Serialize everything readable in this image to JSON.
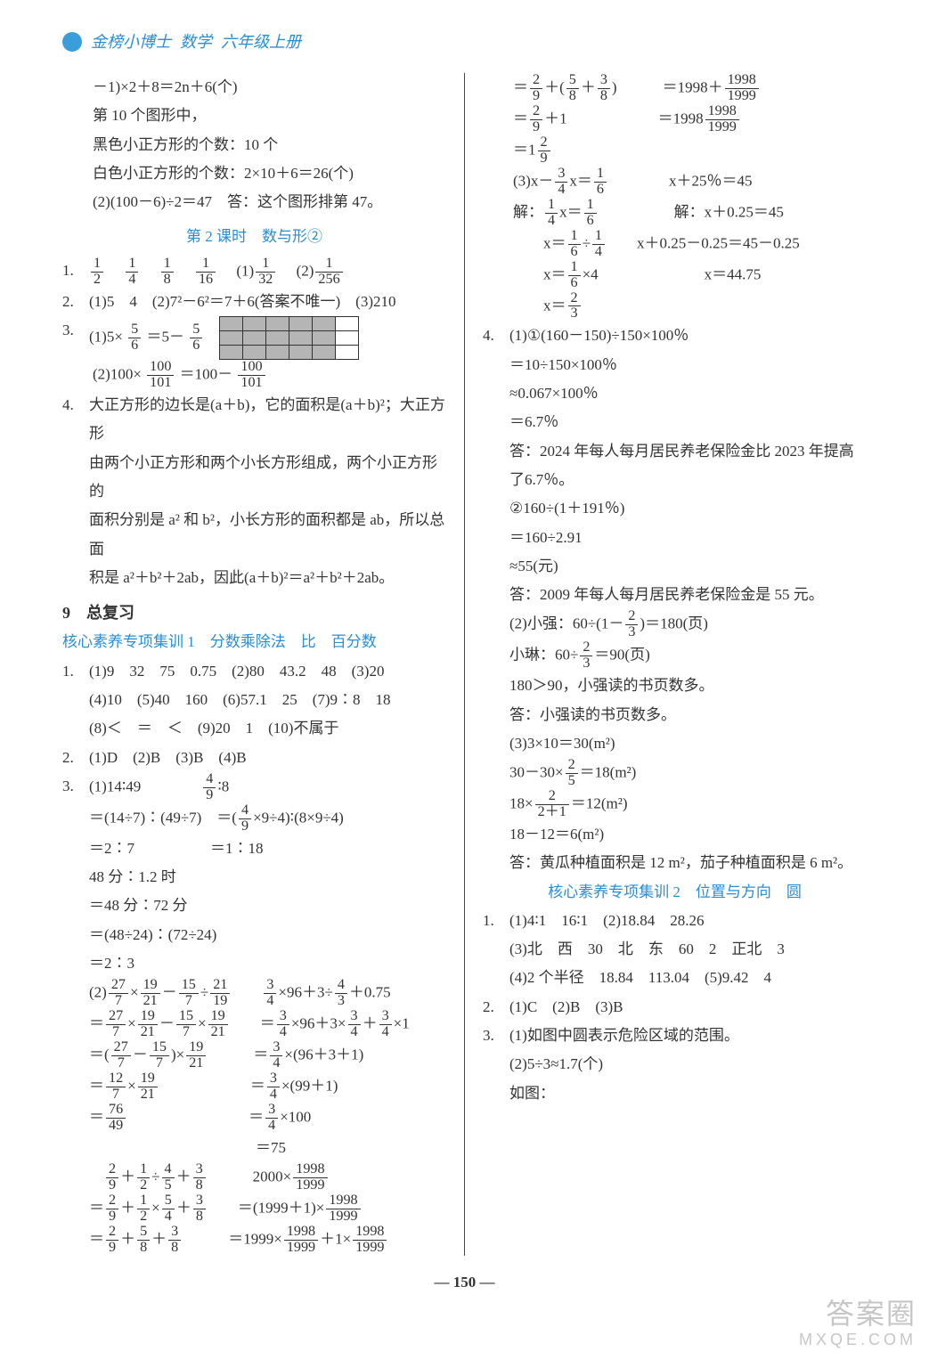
{
  "header": {
    "brand": "金榜小博士",
    "subject": "数学",
    "grade": "六年级上册"
  },
  "colors": {
    "accent": "#2a8ed5",
    "text": "#333333",
    "background": "#ffffff",
    "border": "#444444",
    "grid_shade": "#b5b5b5"
  },
  "left": {
    "l1": "－1)×2＋8＝2n＋6(个)",
    "l2": "第 10 个图形中，",
    "l3": "黑色小正方形的个数：10 个",
    "l4": "白色小正方形的个数：2×10＋6＝26(个)",
    "l5": "(2)(100－6)÷2＝47　答：这个图形排第 47。",
    "sec2_title": "第 2 课时　数与形②",
    "q1": {
      "a": "1/2",
      "b": "1/4",
      "c": "1/8",
      "d": "1/16",
      "e": "(1) 1/32",
      "f": "(2) 1/256"
    },
    "q2": "(1)5　4　(2)7²－6²＝7＋6(答案不唯一)　(3)210",
    "q3a_pre": "(1)5× ",
    "q3a_mid": " ＝5－ ",
    "grid": {
      "rows": 3,
      "cols": 6,
      "shaded_cols": 5
    },
    "q3b_pre": "(2)100× ",
    "q3b_f1n": "100",
    "q3b_f1d": "101",
    "q3b_mid": " ＝100－ ",
    "q4a": "大正方形的边长是(a＋b)，它的面积是(a＋b)²；大正方形",
    "q4b": "由两个小正方形和两个小长方形组成，两个小正方形的",
    "q4c": "面积分别是 a² 和 b²，小长方形的面积都是 ab，所以总面",
    "q4d": "积是 a²＋b²＋2ab，因此(a＋b)²＝a²＋b²＋2ab。",
    "nine": "9　总复习",
    "train1": "核心素养专项集训 1　分数乘除法　比　百分数",
    "r1a": "(1)9　32　75　0.75　(2)80　43.2　48　(3)20",
    "r1b": "(4)10　(5)40　160　(6)57.1　25　(7)9∶8　18",
    "r1c": "(8)＜　＝　＜　(9)20　1　(10)不属于",
    "r2": "(1)D　(2)B　(3)B　(4)B",
    "r3_1a": "(1)14∶49",
    "r3_1b": "4/9∶8",
    "r3_2a": "＝(14÷7)∶(49÷7)",
    "r3_2b": "＝(4/9×9÷4)∶(8×9÷4)",
    "r3_3a": "＝2∶7",
    "r3_3b": "＝1∶18",
    "r3_4": "48 分∶1.2 时",
    "r3_5": "＝48 分∶72 分",
    "r3_6": "＝(48÷24)∶(72÷24)",
    "r3_7": "＝2∶3",
    "r3_8a": "(2) 27/7 × 19/21 － 15/7 ÷ 21/19",
    "r3_8b": "3/4 ×96＋3÷ 4/3 ＋0.75",
    "r3_9a": "＝ 27/7 × 19/21 － 15/7 × 19/21",
    "r3_9b": "＝ 3/4 ×96＋3× 3/4 ＋ 3/4 ×1",
    "r3_10a": "＝( 27/7 － 15/7 )× 19/21",
    "r3_10b": "＝ 3/4 ×(96＋3＋1)",
    "r3_11a": "＝ 12/7 × 19/21",
    "r3_11b": "＝ 3/4 ×(99＋1)",
    "r3_12a": "＝ 76/49",
    "r3_12b": "＝ 3/4 ×100",
    "r3_13b": "＝75",
    "r3_14a": "2/9 ＋ 1/2 ÷ 4/5 ＋ 3/8",
    "r3_14b": "2000× 1998/1999",
    "r3_15a": "＝ 2/9 ＋ 1/2 × 5/4 ＋ 3/8",
    "r3_15b": "＝(1999＋1)× 1998/1999",
    "r3_16a": "＝ 2/9 ＋ 5/8 ＋ 3/8",
    "r3_16b": "＝1999× 1998/1999 ＋1× 1998/1999"
  },
  "right": {
    "l1a": "＝ 2/9 ＋( 5/8 ＋ 3/8 )",
    "l1b": "＝1998＋ 1998/1999",
    "l2a": "＝ 2/9 ＋1",
    "l2b": "＝1998 1998/1999",
    "l3": "＝1 2/9",
    "l4a": "(3)x－ 3/4 x＝ 1/6",
    "l4b": "x＋25％＝45",
    "l5a": "解： 1/4 x＝ 1/6",
    "l5b": "解：x＋0.25＝45",
    "l6a": "x＝ 1/6 ÷ 1/4",
    "l6b": "x＋0.25－0.25＝45－0.25",
    "l7a": "x＝ 1/6 ×4",
    "l7b": "x＝44.75",
    "l8": "x＝ 2/3",
    "q4a": "(1)①(160－150)÷150×100％",
    "q4b": "＝10÷150×100％",
    "q4c": "≈0.067×100％",
    "q4d": "＝6.7％",
    "q4e": "答：2024 年每人每月居民养老保险金比 2023 年提高",
    "q4f": "了6.7％。",
    "q4g": "②160÷(1＋191％)",
    "q4h": "＝160÷2.91",
    "q4i": "≈55(元)",
    "q4j": "答：2009 年每人每月居民养老保险金是 55 元。",
    "q4k": "(2)小强：60÷(1－ 2/3 )＝180(页)",
    "q4l": "小琳：60÷ 2/3 ＝90(页)",
    "q4m": "180＞90，小强读的书页数多。",
    "q4n": "答：小强读的书页数多。",
    "q4o": "(3)3×10＝30(m²)",
    "q4p": "30－30× 2/5 ＝18(m²)",
    "q4q": "18× 2/(2＋1) ＝12(m²)",
    "q4r": "18－12＝6(m²)",
    "q4s": "答：黄瓜种植面积是 12 m²，茄子种植面积是 6 m²。",
    "train2": "核心素养专项集训 2　位置与方向　圆",
    "t2_1a": "(1)4∶1　16∶1　(2)18.84　28.26",
    "t2_1b": "(3)北　西　30　北　东　60　2　正北　3",
    "t2_1c": "(4)2 个半径　18.84　113.04　(5)9.42　4",
    "t2_2": "(1)C　(2)B　(3)B",
    "t2_3a": "(1)如图中圆表示危险区域的范围。",
    "t2_3b": "(2)5÷3≈1.7(个)",
    "t2_3c": "如图："
  },
  "footer": {
    "page": "— 150 —"
  },
  "watermark": {
    "line1": "答案圈",
    "line2": "MXQE.COM"
  }
}
